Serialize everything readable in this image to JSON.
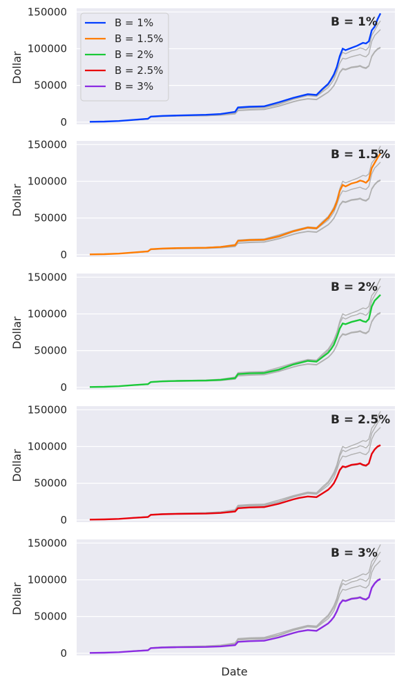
{
  "chart_data": [
    {
      "type": "line",
      "panel_label": "B = 1%",
      "ylabel": "Dollar",
      "xlabel": "",
      "ylim": [
        -3000,
        155000
      ],
      "yticks": [
        0,
        50000,
        100000,
        150000
      ],
      "highlight_series": "B = 1%",
      "legend_placement": "top-left",
      "show_legend": true
    },
    {
      "type": "line",
      "panel_label": "B = 1.5%",
      "ylabel": "Dollar",
      "xlabel": "",
      "ylim": [
        -3000,
        155000
      ],
      "yticks": [
        0,
        50000,
        100000,
        150000
      ],
      "highlight_series": "B = 1.5%",
      "show_legend": false
    },
    {
      "type": "line",
      "panel_label": "B = 2%",
      "ylabel": "Dollar",
      "xlabel": "",
      "ylim": [
        -3000,
        155000
      ],
      "yticks": [
        0,
        50000,
        100000,
        150000
      ],
      "highlight_series": "B = 2%",
      "show_legend": false
    },
    {
      "type": "line",
      "panel_label": "B = 2.5%",
      "ylabel": "Dollar",
      "xlabel": "",
      "ylim": [
        -3000,
        155000
      ],
      "yticks": [
        0,
        50000,
        100000,
        150000
      ],
      "highlight_series": "B = 2.5%",
      "show_legend": false
    },
    {
      "type": "line",
      "panel_label": "B = 3%",
      "ylabel": "Dollar",
      "xlabel": "Date",
      "ylim": [
        -3000,
        155000
      ],
      "yticks": [
        0,
        50000,
        100000,
        150000
      ],
      "highlight_series": "B = 3%",
      "show_legend": false
    }
  ],
  "series": [
    {
      "name": "B = 1%",
      "color": "#023eff",
      "x": [
        0,
        0.05,
        0.1,
        0.15,
        0.2,
        0.21,
        0.25,
        0.3,
        0.35,
        0.4,
        0.45,
        0.5,
        0.51,
        0.55,
        0.6,
        0.65,
        0.7,
        0.72,
        0.75,
        0.78,
        0.8,
        0.82,
        0.83,
        0.84,
        0.85,
        0.86,
        0.87,
        0.88,
        0.9,
        0.92,
        0.93,
        0.94,
        0.95,
        0.96,
        0.97,
        0.98,
        0.99,
        1.0
      ],
      "y": [
        500,
        800,
        1500,
        3000,
        4500,
        7500,
        8500,
        9000,
        9500,
        10000,
        11000,
        14000,
        20000,
        21000,
        21500,
        27000,
        33000,
        35000,
        38000,
        37000,
        45000,
        52000,
        58000,
        65000,
        75000,
        90000,
        100000,
        98000,
        101000,
        104000,
        106000,
        108000,
        107000,
        110000,
        125000,
        130000,
        140000,
        148000
      ]
    },
    {
      "name": "B = 1.5%",
      "color": "#ff7c00",
      "x": [
        0,
        0.05,
        0.1,
        0.15,
        0.2,
        0.21,
        0.25,
        0.3,
        0.35,
        0.4,
        0.45,
        0.5,
        0.51,
        0.55,
        0.6,
        0.65,
        0.7,
        0.72,
        0.75,
        0.78,
        0.8,
        0.82,
        0.83,
        0.84,
        0.85,
        0.86,
        0.87,
        0.88,
        0.9,
        0.92,
        0.93,
        0.94,
        0.95,
        0.96,
        0.97,
        0.98,
        0.99,
        1.0
      ],
      "y": [
        500,
        800,
        1500,
        3000,
        4500,
        7500,
        8500,
        9000,
        9300,
        9500,
        10500,
        13000,
        19000,
        20000,
        20500,
        25000,
        32000,
        34000,
        37000,
        36000,
        43000,
        50000,
        56000,
        62000,
        72000,
        87000,
        95000,
        93000,
        97000,
        99000,
        101000,
        100000,
        98000,
        102000,
        118000,
        125000,
        132000,
        138000
      ]
    },
    {
      "name": "B = 2%",
      "color": "#1ac938",
      "x": [
        0,
        0.05,
        0.1,
        0.15,
        0.2,
        0.21,
        0.25,
        0.3,
        0.35,
        0.4,
        0.45,
        0.5,
        0.51,
        0.55,
        0.6,
        0.65,
        0.7,
        0.72,
        0.75,
        0.78,
        0.8,
        0.82,
        0.83,
        0.84,
        0.85,
        0.86,
        0.87,
        0.88,
        0.9,
        0.92,
        0.93,
        0.94,
        0.95,
        0.96,
        0.97,
        0.98,
        0.99,
        1.0
      ],
      "y": [
        500,
        800,
        1500,
        3000,
        4300,
        7200,
        8200,
        8800,
        9000,
        9300,
        10200,
        12500,
        18000,
        19000,
        19500,
        24000,
        31000,
        33000,
        36000,
        35000,
        41000,
        47000,
        52000,
        58000,
        68000,
        80000,
        87000,
        86000,
        89000,
        91000,
        92000,
        90000,
        89000,
        93000,
        110000,
        118000,
        122000,
        126000
      ]
    },
    {
      "name": "B = 2.5%",
      "color": "#e8000b",
      "x": [
        0,
        0.05,
        0.1,
        0.15,
        0.2,
        0.21,
        0.25,
        0.3,
        0.35,
        0.4,
        0.45,
        0.5,
        0.51,
        0.55,
        0.6,
        0.65,
        0.7,
        0.72,
        0.75,
        0.78,
        0.8,
        0.82,
        0.83,
        0.84,
        0.85,
        0.86,
        0.87,
        0.88,
        0.9,
        0.92,
        0.93,
        0.94,
        0.95,
        0.96,
        0.97,
        0.98,
        0.99,
        1.0
      ],
      "y": [
        500,
        800,
        1400,
        2800,
        4000,
        7000,
        7800,
        8300,
        8500,
        8700,
        9500,
        11500,
        16000,
        17000,
        17500,
        22000,
        28000,
        30000,
        32000,
        31000,
        36000,
        41000,
        45000,
        50000,
        58000,
        68000,
        73000,
        72000,
        75000,
        76000,
        77000,
        75000,
        74000,
        77000,
        90000,
        96000,
        100000,
        102000
      ]
    },
    {
      "name": "B = 3%",
      "color": "#8b2be2",
      "x": [
        0,
        0.05,
        0.1,
        0.15,
        0.2,
        0.21,
        0.25,
        0.3,
        0.35,
        0.4,
        0.45,
        0.5,
        0.51,
        0.55,
        0.6,
        0.65,
        0.7,
        0.72,
        0.75,
        0.78,
        0.8,
        0.82,
        0.83,
        0.84,
        0.85,
        0.86,
        0.87,
        0.88,
        0.9,
        0.92,
        0.93,
        0.94,
        0.95,
        0.96,
        0.97,
        0.98,
        0.99,
        1.0
      ],
      "y": [
        500,
        800,
        1400,
        2800,
        4000,
        7000,
        7800,
        8200,
        8400,
        8600,
        9300,
        11000,
        15500,
        16500,
        17000,
        21500,
        27500,
        29500,
        31500,
        30500,
        35500,
        40500,
        44500,
        49500,
        57000,
        67000,
        72000,
        71000,
        74000,
        75000,
        76000,
        74000,
        73000,
        76000,
        89000,
        95000,
        99000,
        101000
      ]
    }
  ],
  "styles": {
    "panel_background": "#eaeaf2",
    "grid_color": "#ffffff",
    "background_series_color": "#b0b0b0"
  }
}
